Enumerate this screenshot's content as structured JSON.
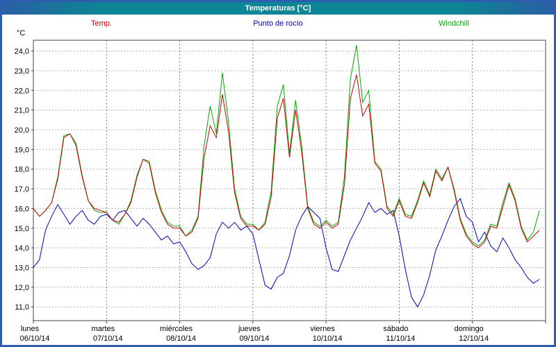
{
  "window": {
    "title": "Temperaturas [°C]"
  },
  "legend": {
    "items": [
      {
        "label": "Temp.",
        "color": "#cc0000"
      },
      {
        "label": "Punto de rocío",
        "color": "#0000bb"
      },
      {
        "label": "Windchill",
        "color": "#00aa00"
      }
    ]
  },
  "colors": {
    "window_border": "#2e5cae",
    "titlebar": "#0c8694",
    "grid_h": "#999999",
    "grid_v": "#777777",
    "axis": "#444444"
  },
  "chart_data": {
    "type": "line",
    "title": "Temperaturas [°C]",
    "xlabel": "",
    "ylabel": "°C",
    "ylim": [
      10.3,
      24.55
    ],
    "grid": true,
    "legend_position": "top",
    "yticks": [
      11,
      12,
      13,
      14,
      15,
      16,
      17,
      18,
      19,
      20,
      21,
      22,
      23,
      24
    ],
    "ytick_labels": [
      "11,0",
      "12,0",
      "13,0",
      "14,0",
      "15,0",
      "16,0",
      "17,0",
      "18,0",
      "19,0",
      "20,0",
      "21,0",
      "22,0",
      "23,0",
      "24,0"
    ],
    "days": [
      {
        "weekday": "lunes",
        "date": "06/10/14"
      },
      {
        "weekday": "martes",
        "date": "07/10/14"
      },
      {
        "weekday": "miércoles",
        "date": "08/10/14"
      },
      {
        "weekday": "jueves",
        "date": "09/10/14"
      },
      {
        "weekday": "viernes",
        "date": "10/10/14"
      },
      {
        "weekday": "sábado",
        "date": "11/10/14"
      },
      {
        "weekday": "domingo",
        "date": "12/10/14"
      }
    ],
    "points_per_day": 12,
    "series": [
      {
        "name": "Temp.",
        "color": "#cc0000",
        "values": [
          16.0,
          15.6,
          15.9,
          16.3,
          17.5,
          19.6,
          19.8,
          19.2,
          17.6,
          16.4,
          16.0,
          15.9,
          15.8,
          15.4,
          15.3,
          15.7,
          16.3,
          17.6,
          18.5,
          18.3,
          16.8,
          15.8,
          15.2,
          15.0,
          15.0,
          14.6,
          14.8,
          15.5,
          18.6,
          20.2,
          19.6,
          21.8,
          19.9,
          16.8,
          15.5,
          15.1,
          15.1,
          14.9,
          15.2,
          16.6,
          20.6,
          21.6,
          18.6,
          21.0,
          18.9,
          16.0,
          15.2,
          15.0,
          15.3,
          15.0,
          15.2,
          17.2,
          21.6,
          22.8,
          20.7,
          21.3,
          18.3,
          17.9,
          16.0,
          15.6,
          16.4,
          15.6,
          15.5,
          16.3,
          17.3,
          16.6,
          17.9,
          17.4,
          18.1,
          16.9,
          15.4,
          14.6,
          14.2,
          14.0,
          14.3,
          15.1,
          15.0,
          16.1,
          17.2,
          16.4,
          15.0,
          14.3,
          14.6,
          14.9
        ]
      },
      {
        "name": "Punto de rocío",
        "color": "#0000bb",
        "values": [
          13.0,
          13.4,
          14.9,
          15.6,
          16.2,
          15.7,
          15.2,
          15.6,
          15.9,
          15.4,
          15.2,
          15.6,
          15.7,
          15.4,
          15.8,
          15.9,
          15.5,
          15.1,
          15.5,
          15.2,
          14.8,
          14.4,
          14.6,
          14.2,
          14.3,
          13.8,
          13.2,
          12.9,
          13.1,
          13.5,
          14.7,
          15.3,
          15.0,
          15.3,
          14.9,
          15.1,
          14.7,
          13.4,
          12.1,
          11.9,
          12.5,
          12.7,
          13.6,
          14.9,
          15.6,
          16.1,
          15.8,
          15.5,
          14.0,
          12.9,
          12.8,
          13.6,
          14.4,
          15.0,
          15.6,
          16.3,
          15.8,
          16.0,
          15.7,
          15.9,
          14.6,
          12.9,
          11.5,
          11.0,
          11.6,
          12.6,
          13.9,
          14.6,
          15.4,
          16.1,
          16.5,
          15.6,
          15.3,
          14.3,
          14.8,
          14.1,
          13.8,
          14.5,
          14.0,
          13.4,
          13.0,
          12.5,
          12.2,
          12.4
        ]
      },
      {
        "name": "Windchill",
        "color": "#00aa00",
        "values": [
          16.0,
          15.6,
          15.9,
          16.3,
          17.6,
          19.7,
          19.8,
          19.3,
          17.7,
          16.4,
          15.9,
          15.8,
          15.8,
          15.4,
          15.2,
          15.7,
          16.4,
          17.7,
          18.5,
          18.4,
          16.9,
          15.9,
          15.3,
          15.1,
          15.1,
          14.6,
          14.9,
          15.6,
          19.2,
          21.2,
          19.8,
          22.9,
          20.4,
          17.0,
          15.6,
          15.2,
          15.2,
          14.9,
          15.3,
          16.9,
          21.2,
          22.3,
          18.8,
          21.5,
          19.2,
          16.1,
          15.3,
          15.1,
          15.4,
          15.1,
          15.3,
          17.6,
          22.6,
          24.3,
          21.4,
          22.0,
          18.4,
          18.0,
          16.1,
          15.7,
          16.5,
          15.7,
          15.6,
          16.4,
          17.4,
          16.7,
          18.0,
          17.5,
          18.1,
          17.0,
          15.5,
          14.7,
          14.3,
          14.1,
          14.4,
          15.2,
          15.1,
          16.3,
          17.3,
          16.5,
          15.1,
          14.4,
          14.8,
          15.9
        ]
      }
    ]
  }
}
